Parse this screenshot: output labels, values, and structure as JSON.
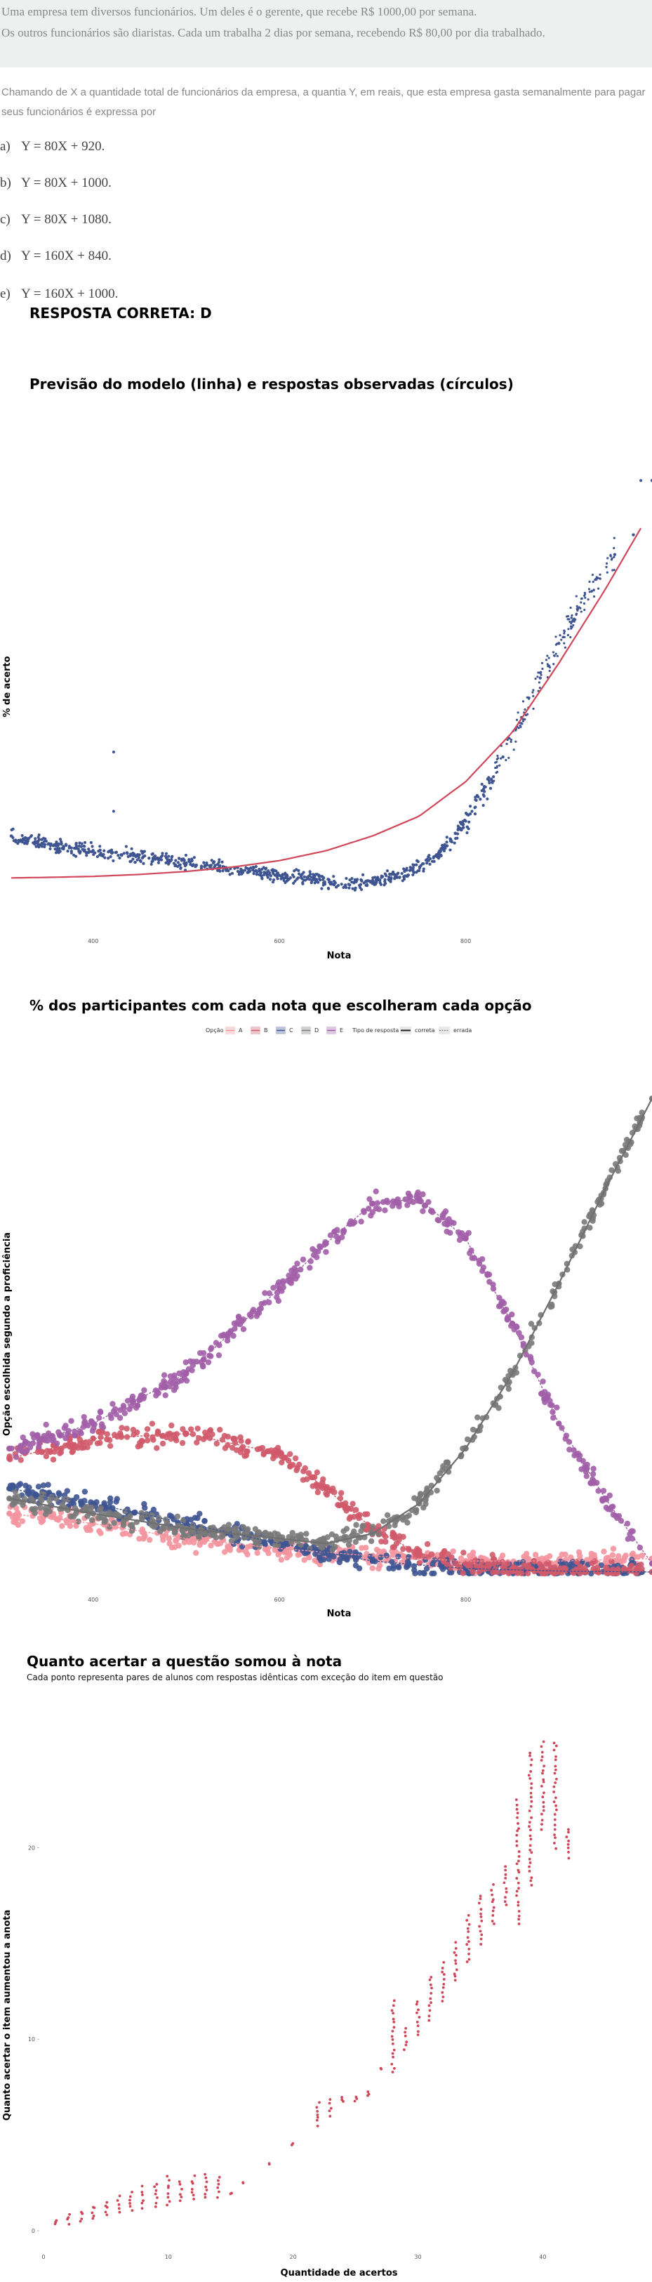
{
  "question": {
    "line1": "Uma empresa tem diversos funcionários. Um deles é o gerente, que recebe R$ 1000,00 por semana.",
    "line2": "Os outros funcionários são diaristas. Cada um trabalha 2 dias por semana, recebendo R$ 80,00 por dia trabalhado.",
    "intro": "Chamando de X a quantidade total de funcionários da empresa, a quantia Y, em reais, que esta empresa gasta semanalmente para pagar seus funcionários é expressa por",
    "options": [
      {
        "letter": "a)",
        "text": "Y = 80X + 920."
      },
      {
        "letter": "b)",
        "text": "Y = 80X + 1000."
      },
      {
        "letter": "c)",
        "text": "Y = 80X + 1080."
      },
      {
        "letter": "d)",
        "text": "Y = 160X + 840."
      },
      {
        "letter": "e)",
        "text": "Y = 160X + 1000."
      }
    ],
    "answer": "RESPOSTA CORRETA: D"
  },
  "colors": {
    "line": "#d0475a",
    "points": "#3f5592",
    "A": "#f4939f",
    "B": "#d05a6a",
    "C": "#3f5592",
    "D": "#7a7a7a",
    "E": "#a25fa8",
    "scatter3": "#d0475a"
  },
  "chart_data": [
    {
      "type": "scatter",
      "title": "Previsão do modelo (linha) e respostas observadas (círculos)",
      "xlabel": "Nota",
      "ylabel": "% de acerto",
      "xlim": [
        300,
        1000
      ],
      "ylim": [
        0,
        100
      ],
      "xticks": [
        400,
        600,
        800
      ],
      "yticks": [
        0,
        25,
        50,
        75,
        100
      ],
      "series": [
        {
          "kind": "observed",
          "x": [
            312,
            330,
            345,
            360,
            380,
            400,
            420,
            440,
            460,
            480,
            500,
            520,
            540,
            560,
            580,
            600,
            620,
            640,
            660,
            680,
            700,
            720,
            740,
            760,
            780,
            800,
            820,
            840,
            860,
            880,
            900,
            920,
            940,
            960,
            980,
            1000
          ],
          "y": [
            16,
            15,
            14.5,
            14,
            13.5,
            13,
            12.5,
            12,
            11.5,
            11,
            10.5,
            10,
            9.5,
            9,
            8.5,
            8,
            7.5,
            7,
            6.5,
            6.5,
            7,
            7.5,
            9,
            11,
            14,
            19,
            25,
            32,
            40,
            48,
            55,
            62,
            68,
            73,
            77,
            88
          ]
        },
        {
          "kind": "model",
          "x": [
            312,
            350,
            400,
            450,
            500,
            550,
            600,
            650,
            700,
            750,
            800,
            850,
            900,
            950,
            990
          ],
          "y": [
            7.5,
            7.6,
            7.8,
            8.2,
            8.8,
            9.7,
            11,
            13,
            16,
            20,
            27,
            37,
            51,
            66,
            79
          ]
        }
      ],
      "outliers": [
        {
          "x": 422,
          "y": 33
        },
        {
          "x": 422,
          "y": 21
        },
        {
          "x": 988,
          "y": 88
        }
      ]
    },
    {
      "type": "scatter",
      "title": "% dos participantes com cada nota que escolheram cada opção",
      "xlabel": "Nota",
      "ylabel": "Opção escolhida segundo a proficiência",
      "xlim": [
        300,
        1000
      ],
      "ylim": [
        0,
        100
      ],
      "xticks": [
        400,
        600,
        800
      ],
      "yticks": [
        0,
        25,
        50,
        75,
        100
      ],
      "legend_title": "Opção",
      "legend_entries": [
        "A",
        "B",
        "C",
        "D",
        "E"
      ],
      "legend_type_title": "Tipo de resposta",
      "legend_type_entries": [
        "correta",
        "errada"
      ],
      "legend_position": "top",
      "correct_option": "D",
      "series": [
        {
          "name": "A",
          "x": [
            310,
            400,
            500,
            600,
            700,
            800,
            900,
            1000
          ],
          "y": [
            12,
            10,
            7,
            5,
            3.5,
            2.5,
            2.5,
            3
          ]
        },
        {
          "name": "B",
          "x": [
            310,
            400,
            500,
            600,
            650,
            700,
            750,
            800,
            850,
            900,
            1000
          ],
          "y": [
            23,
            27,
            28,
            24,
            17,
            9,
            4,
            2,
            1,
            0.5,
            0.3
          ]
        },
        {
          "name": "C",
          "x": [
            310,
            400,
            500,
            600,
            700,
            800,
            900,
            1000
          ],
          "y": [
            17,
            14,
            10,
            6,
            2.5,
            1,
            0.5,
            0.3
          ]
        },
        {
          "name": "D",
          "x": [
            310,
            400,
            500,
            600,
            650,
            700,
            750,
            800,
            850,
            900,
            950,
            1000
          ],
          "y": [
            15,
            12,
            9,
            7,
            6,
            8,
            14,
            25,
            40,
            58,
            77,
            95
          ]
        },
        {
          "name": "E",
          "x": [
            310,
            400,
            500,
            600,
            650,
            700,
            750,
            800,
            850,
            900,
            950,
            1000
          ],
          "y": [
            25,
            30,
            40,
            57,
            66,
            74,
            75,
            67,
            50,
            30,
            15,
            2
          ]
        }
      ]
    },
    {
      "type": "scatter",
      "title": "Quanto acertar a questão somou à nota",
      "subtitle": "Cada ponto representa pares de alunos com respostas idênticas com exceção do item em questão",
      "xlabel": "Quantidade de acertos",
      "ylabel": "Quanto acertar o item aumentou a anota",
      "xlim": [
        0,
        46
      ],
      "ylim": [
        0,
        28
      ],
      "xticks": [
        0,
        10,
        20,
        30,
        40
      ],
      "yticks": [
        0,
        10,
        20
      ],
      "x": [
        1,
        2,
        3,
        4,
        5,
        6,
        7,
        8,
        9,
        10,
        11,
        12,
        13,
        14,
        15,
        16,
        18,
        20,
        22,
        23,
        24,
        25,
        26,
        27,
        28,
        29,
        30,
        31,
        32,
        33,
        34,
        35,
        36,
        37,
        38,
        39,
        40,
        41,
        42
      ],
      "ymin": [
        0.3,
        0.4,
        0.5,
        0.6,
        0.8,
        1.0,
        1.0,
        1.2,
        1.3,
        1.4,
        1.5,
        1.6,
        1.7,
        1.8,
        2.0,
        2.5,
        3.5,
        4.5,
        5.5,
        6.0,
        6.7,
        6.8,
        7.0,
        8.5,
        8.3,
        9.5,
        10.2,
        11.0,
        12.0,
        13.0,
        14.0,
        15.0,
        16.0,
        17.0,
        16.0,
        18.0,
        21.0,
        20.0,
        19.5
      ],
      "ymax": [
        0.5,
        0.8,
        1.0,
        1.3,
        1.5,
        1.8,
        2.0,
        2.3,
        2.5,
        2.8,
        2.6,
        2.8,
        3.0,
        2.8,
        2.0,
        2.5,
        3.5,
        4.5,
        6.7,
        6.8,
        7.0,
        7.0,
        7.3,
        8.5,
        12.0,
        10.5,
        12.0,
        13.3,
        14.0,
        15.0,
        16.5,
        17.5,
        18.0,
        19.0,
        22.5,
        25.0,
        25.5,
        25.5,
        21.0
      ]
    }
  ]
}
